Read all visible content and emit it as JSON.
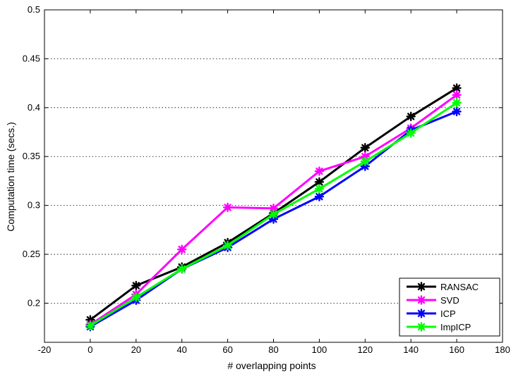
{
  "chart_data": {
    "type": "line",
    "xlabel": "# overlapping points",
    "ylabel": "Computation time (secs.)",
    "xlim": [
      -20,
      180
    ],
    "ylim": [
      0.16,
      0.5
    ],
    "xticks": [
      "-20",
      "0",
      "20",
      "40",
      "60",
      "80",
      "100",
      "120",
      "140",
      "160",
      "180"
    ],
    "yticks": [
      "0.2",
      "0.25",
      "0.3",
      "0.35",
      "0.4",
      "0.45",
      "0.5"
    ],
    "grid": "horizontal dotted",
    "legend_position": "bottom-right",
    "x": [
      0,
      20,
      40,
      60,
      80,
      100,
      120,
      140,
      160
    ],
    "series": [
      {
        "name": "RANSAC",
        "color": "#000000",
        "marker": "asterisk",
        "values": [
          0.183,
          0.218,
          0.237,
          0.262,
          0.292,
          0.324,
          0.359,
          0.391,
          0.42
        ]
      },
      {
        "name": "SVD",
        "color": "#ff00ff",
        "marker": "asterisk",
        "values": [
          0.178,
          0.209,
          0.255,
          0.298,
          0.297,
          0.335,
          0.35,
          0.379,
          0.413
        ]
      },
      {
        "name": "ICP",
        "color": "#0000ff",
        "marker": "asterisk",
        "values": [
          0.176,
          0.203,
          0.235,
          0.257,
          0.286,
          0.309,
          0.34,
          0.377,
          0.396
        ]
      },
      {
        "name": "ImpICP",
        "color": "#00ff00",
        "marker": "asterisk",
        "values": [
          0.177,
          0.206,
          0.235,
          0.259,
          0.291,
          0.317,
          0.345,
          0.374,
          0.405
        ]
      }
    ]
  }
}
